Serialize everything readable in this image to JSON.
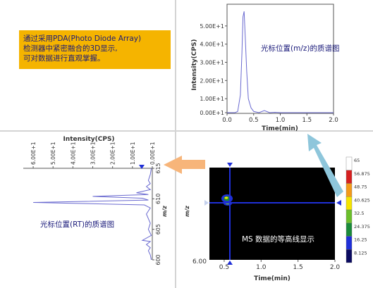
{
  "callout": {
    "line1": "通过采用PDA(Photo Diode Array)",
    "line2": "检测器中紧密融合的3D显示,",
    "line3": "可对数据进行直观掌握。"
  },
  "labels": {
    "ms_at_mz": "光标位置(m/z)的质谱图",
    "ms_at_rt": "光标位置(RT)的质谱图",
    "contour": "MS 数据的等高线显示"
  },
  "colors": {
    "callout_bg": "#f5b400",
    "trace": "#6a6ad0",
    "cursor": "#1f2fd8",
    "arrow_orange": "#f7b57a",
    "arrow_blue": "#8ec6db"
  },
  "chart_data": [
    {
      "type": "line",
      "xlabel": "Time(min)",
      "ylabel": "Intensity(CPS)",
      "xlim": [
        0.0,
        2.0
      ],
      "ylim": [
        0,
        60
      ],
      "xticks": [
        "0.0",
        "0.5",
        "1.0",
        "1.5",
        "2.0"
      ],
      "yticks": [
        "0.00E+1",
        "1.00E+1",
        "2.00E+1",
        "3.00E+1",
        "4.00E+1",
        "5.00E+1"
      ],
      "x": [
        0.0,
        0.1,
        0.15,
        0.2,
        0.25,
        0.28,
        0.3,
        0.32,
        0.34,
        0.37,
        0.4,
        0.45,
        0.5,
        0.6,
        0.7,
        0.8,
        0.9,
        1.0,
        1.1,
        1.2,
        1.3,
        1.4,
        1.5,
        1.6,
        1.7,
        1.8,
        1.9,
        2.0
      ],
      "y": [
        0.5,
        0.8,
        1.2,
        3,
        12,
        35,
        55,
        58,
        45,
        25,
        10,
        5,
        3,
        2,
        3.5,
        1.8,
        2.5,
        1.2,
        1.8,
        0.9,
        1.2,
        0.6,
        0.5,
        0.7,
        0.4,
        0.5,
        0.3,
        0.4
      ]
    },
    {
      "type": "line",
      "title": "Intensity(CPS)",
      "ylabel": "m/z",
      "xlim": [
        0,
        65
      ],
      "ylim": [
        600,
        615
      ],
      "xticks": [
        "6.00E+1",
        "5.00E+1",
        "4.00E+1",
        "3.00E+1",
        "2.00E+1",
        "1.00E+1",
        "0.00E+1"
      ],
      "yticks": [
        "615",
        "610",
        "605",
        "600"
      ],
      "x": [
        0.5,
        1,
        2,
        1,
        3,
        1,
        8,
        2,
        30,
        5,
        2,
        60,
        4,
        1,
        3,
        1,
        2,
        0.5,
        5,
        1,
        3,
        1,
        2,
        1,
        0.5
      ],
      "y": [
        615,
        614,
        613,
        612.5,
        612,
        611.5,
        611,
        610.7,
        610.4,
        610.1,
        609.8,
        609.4,
        609,
        608.5,
        607.5,
        606,
        605,
        604,
        603.2,
        603,
        602.5,
        602,
        601.5,
        600.8,
        600
      ]
    },
    {
      "type": "heatmap",
      "xlabel": "Time(min)",
      "ylabel": "m/z",
      "xlim": [
        0.3,
        2.0
      ],
      "xticks": [
        "0.5",
        "1.0",
        "1.5",
        "2.0"
      ],
      "yticks": [
        "6.00"
      ],
      "cursor": {
        "time": 0.33,
        "mz": 609
      },
      "spot": {
        "time": 0.33,
        "mz": 609.6
      },
      "colorbar": {
        "labels": [
          "65",
          "56.875",
          "48.75",
          "40.625",
          "32.5",
          "24.375",
          "16.25",
          "8.125"
        ],
        "colors": [
          "#ffffff",
          "#d62020",
          "#f39a1b",
          "#f5e400",
          "#6bbf2a",
          "#1a8a3a",
          "#1f2fd8",
          "#0a0a60"
        ]
      }
    }
  ]
}
